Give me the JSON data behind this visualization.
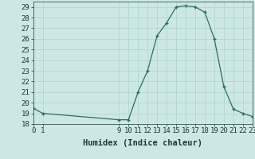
{
  "xlabel": "Humidex (Indice chaleur)",
  "background_color": "#cde8e4",
  "line_color": "#2d6e5e",
  "marker_color": "#2d6e5e",
  "x_values": [
    0,
    1,
    9,
    10,
    11,
    12,
    13,
    14,
    15,
    16,
    17,
    18,
    19,
    20,
    21,
    22,
    23
  ],
  "y_values": [
    19.5,
    19.0,
    18.4,
    18.4,
    21.0,
    23.0,
    26.3,
    27.5,
    29.0,
    29.1,
    29.0,
    28.5,
    26.0,
    21.5,
    19.4,
    19.0,
    18.7
  ],
  "xlim": [
    0,
    23
  ],
  "ylim": [
    18,
    29.5
  ],
  "yticks": [
    18,
    19,
    20,
    21,
    22,
    23,
    24,
    25,
    26,
    27,
    28,
    29
  ],
  "xticks": [
    0,
    1,
    9,
    10,
    11,
    12,
    13,
    14,
    15,
    16,
    17,
    18,
    19,
    20,
    21,
    22,
    23
  ],
  "grid_color": "#aad4cc",
  "font_color": "#1a3a32",
  "tick_fontsize": 6.5,
  "xlabel_fontsize": 7.5
}
